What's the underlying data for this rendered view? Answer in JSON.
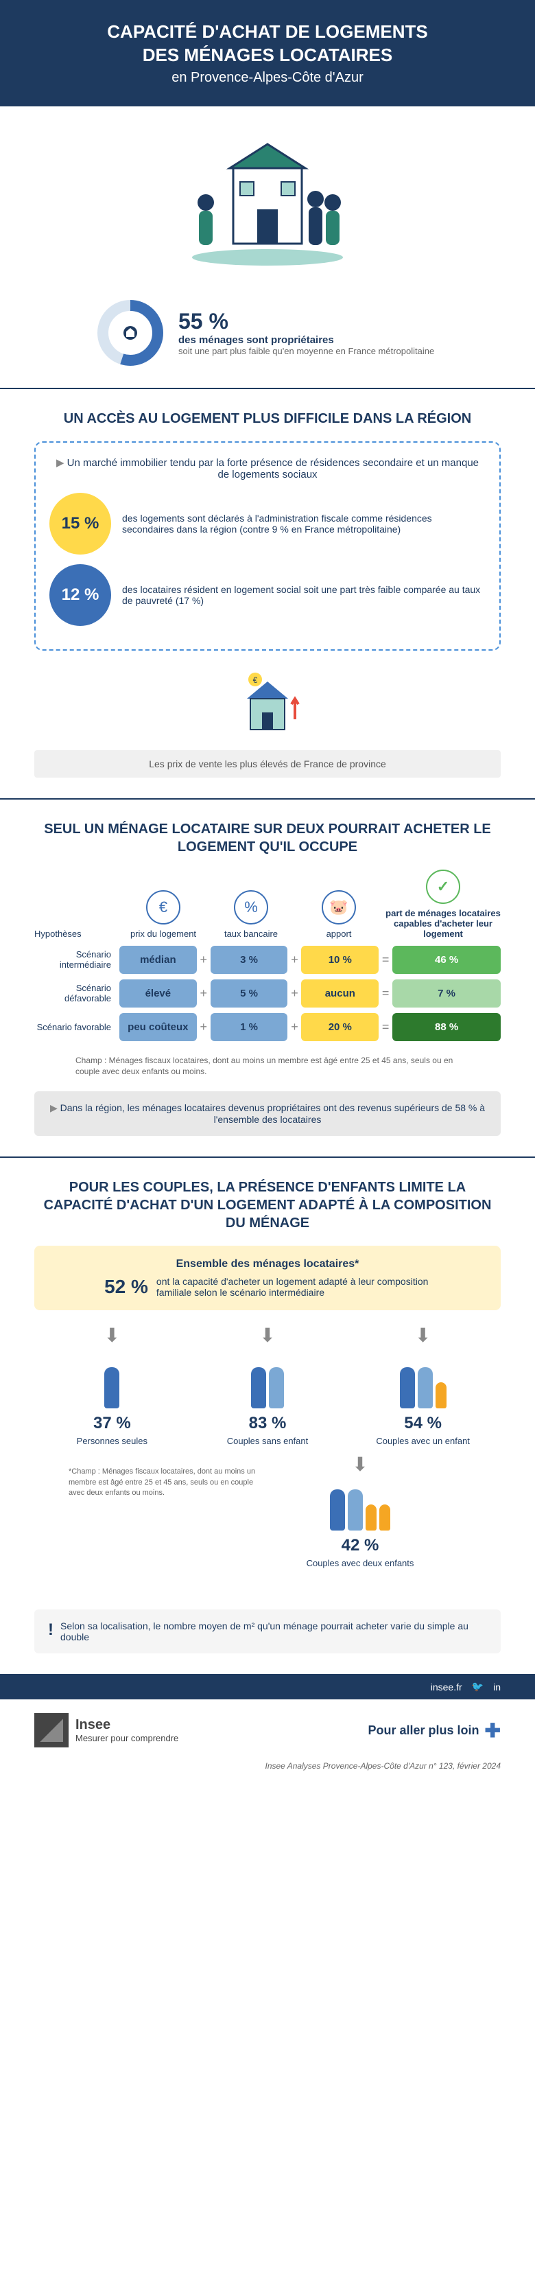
{
  "header": {
    "title1": "CAPACITÉ D'ACHAT DE LOGEMENTS",
    "title2": "DES MÉNAGES LOCATAIRES",
    "sub": "en Provence-Alpes-Côte d'Azur"
  },
  "donut": {
    "pct": "55 %",
    "line1": "des ménages sont propriétaires",
    "line2": "soit une part plus faible qu'en moyenne en France métropolitaine",
    "value": 55,
    "colors": {
      "fill": "#3b6fb6",
      "track": "#d8e4f0"
    }
  },
  "sec2": {
    "title": "UN ACCÈS AU LOGEMENT PLUS DIFFICILE DANS LA RÉGION",
    "intro": "Un marché immobilier tendu par la forte présence de résidences secondaire et un manque de logements sociaux",
    "stat1": {
      "pct": "15 %",
      "text": "des logements sont déclarés à l'administration fiscale comme résidences secondaires dans la région (contre 9 % en France métropolitaine)"
    },
    "stat2": {
      "pct": "12 %",
      "text": "des locataires résident en logement social soit une part très faible comparée au taux de pauvreté (17 %)"
    },
    "price_caption": "Les prix de vente les plus élevés de France de province"
  },
  "sec3": {
    "title": "SEUL UN MÉNAGE LOCATAIRE SUR DEUX POURRAIT ACHETER LE LOGEMENT QU'IL OCCUPE",
    "hyp_label": "Hypothèses",
    "cols": [
      "prix du logement",
      "taux bancaire",
      "apport",
      "part de ménages locataires capables d'acheter leur logement"
    ],
    "rows": [
      {
        "label": "Scénario intermédiaire",
        "c1": "médian",
        "c2": "3 %",
        "c3": "10 %",
        "c4": "46 %",
        "c4_class": "green1"
      },
      {
        "label": "Scénario défavorable",
        "c1": "élevé",
        "c2": "5 %",
        "c3": "aucun",
        "c4": "7 %",
        "c4_class": "green2"
      },
      {
        "label": "Scénario favorable",
        "c1": "peu coûteux",
        "c2": "1 %",
        "c3": "20 %",
        "c4": "88 %",
        "c4_class": "green3"
      }
    ],
    "champ": "Champ : Ménages fiscaux locataires, dont au moins un membre est âgé entre 25 et 45 ans, seuls ou en couple avec deux enfants ou moins.",
    "grey": "Dans la région, les ménages locataires devenus propriétaires ont des revenus supérieurs de 58 % à l'ensemble des locataires"
  },
  "sec4": {
    "title": "POUR LES COUPLES, LA PRÉSENCE D'ENFANTS LIMITE LA CAPACITÉ D'ACHAT D'UN LOGEMENT ADAPTÉ À LA COMPOSITION DU MÉNAGE",
    "box_head": "Ensemble des ménages locataires*",
    "box_pct": "52 %",
    "box_text": "ont la capacité d'acheter un logement adapté à leur composition familiale selon le scénario intermédiaire",
    "cells": [
      {
        "pct": "37 %",
        "label": "Personnes seules",
        "adults": 1,
        "children": 0
      },
      {
        "pct": "83 %",
        "label": "Couples sans enfant",
        "adults": 2,
        "children": 0
      },
      {
        "pct": "54 %",
        "label": "Couples avec un enfant",
        "adults": 2,
        "children": 1
      }
    ],
    "extra": {
      "pct": "42 %",
      "label": "Couples avec deux enfants",
      "adults": 2,
      "children": 2
    },
    "note": "*Champ : Ménages fiscaux locataires, dont au moins un membre est âgé entre 25 et 45 ans, seuls ou en couple avec deux enfants ou moins."
  },
  "loc": {
    "text": "Selon sa localisation, le nombre moyen de m² qu'un ménage pourrait acheter varie du simple au double"
  },
  "footer": {
    "site": "insee.fr",
    "brand": "Insee",
    "tag": "Mesurer pour comprendre",
    "more": "Pour aller plus loin",
    "source": "Insee Analyses Provence-Alpes-Côte d'Azur n° 123, février 2024"
  }
}
